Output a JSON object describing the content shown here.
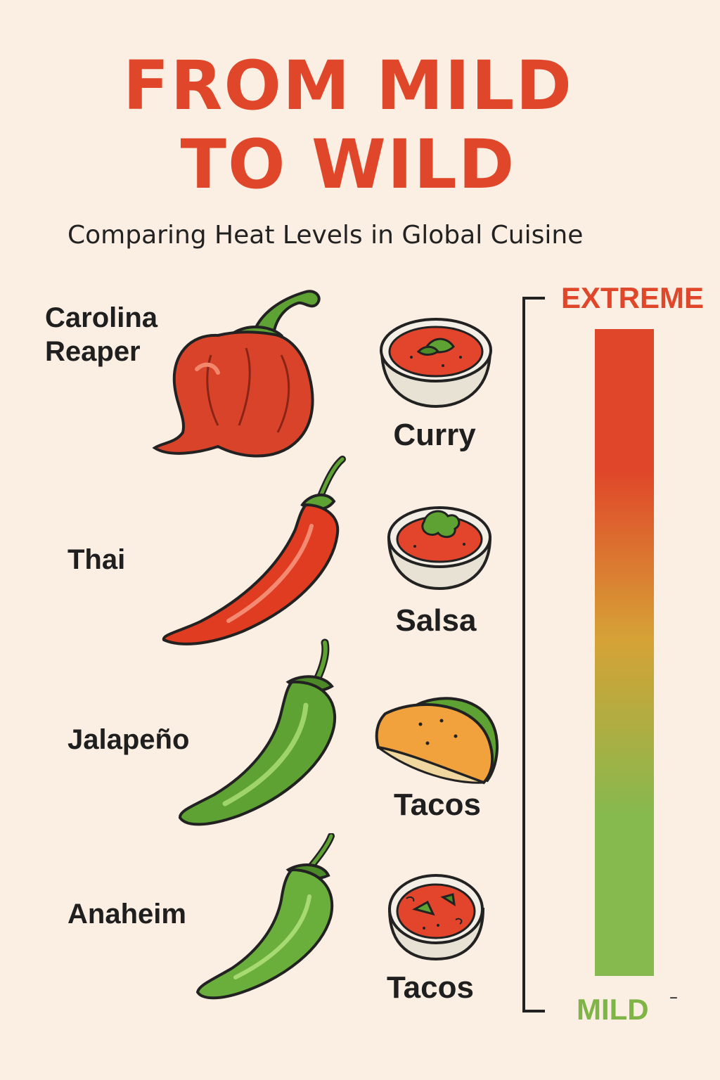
{
  "header": {
    "title_line1": "FROM MILD",
    "title_line2": "TO WILD",
    "subtitle": "Comparing Heat Levels in Global Cuisine"
  },
  "peppers": [
    {
      "name_line1": "Carolina",
      "name_line2": "Reaper",
      "dish": "Curry",
      "color": "#d9432a",
      "icon": "carolina-reaper-pepper-icon"
    },
    {
      "name_line1": "Thai",
      "name_line2": "",
      "dish": "Salsa",
      "color": "#df3c22",
      "icon": "thai-chili-pepper-icon"
    },
    {
      "name_line1": "Jalapeño",
      "name_line2": "",
      "dish": "Tacos",
      "color": "#5da232",
      "icon": "jalapeno-pepper-icon"
    },
    {
      "name_line1": "Anaheim",
      "name_line2": "",
      "dish": "Tacos",
      "color": "#5da232",
      "icon": "anaheim-pepper-icon"
    }
  ],
  "scale": {
    "top_label": "EXTREME",
    "bottom_label": "MILD",
    "bottom_mark": "–",
    "colors": {
      "top": "#e0472a",
      "middle": "#d6a236",
      "bottom": "#86b94e"
    }
  }
}
